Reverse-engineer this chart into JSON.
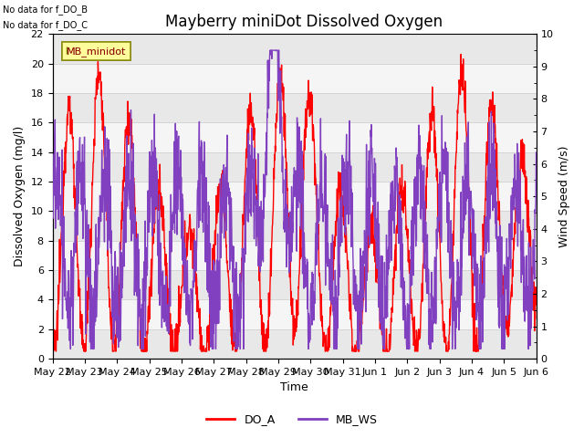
{
  "title": "Mayberry miniDot Dissolved Oxygen",
  "xlabel": "Time",
  "ylabel_left": "Dissolved Oxygen (mg/l)",
  "ylabel_right": "Wind Speed (m/s)",
  "annotation_lines": [
    "No data for f_DO_B",
    "No data for f_DO_C"
  ],
  "legend_label": "MB_minidot",
  "legend_entries": [
    "DO_A",
    "MB_WS"
  ],
  "legend_colors": [
    "#ff0000",
    "#8040c0"
  ],
  "do_color": "#ff0000",
  "ws_color": "#8040c0",
  "ylim_left": [
    0,
    22
  ],
  "ylim_right": [
    0.0,
    10.0
  ],
  "yticks_left": [
    0,
    2,
    4,
    6,
    8,
    10,
    12,
    14,
    16,
    18,
    20,
    22
  ],
  "yticks_right": [
    0.0,
    1.0,
    2.0,
    3.0,
    4.0,
    5.0,
    6.0,
    7.0,
    8.0,
    9.0,
    10.0
  ],
  "xtick_labels": [
    "May 22",
    "May 23",
    "May 24",
    "May 25",
    "May 26",
    "May 27",
    "May 28",
    "May 29",
    "May 30",
    "May 31",
    "Jun 1",
    "Jun 2",
    "Jun 3",
    "Jun 4",
    "Jun 5",
    "Jun 6"
  ],
  "background_color": "#ffffff",
  "plot_bg_light": "#f5f5f5",
  "plot_bg_dark": "#e8e8e8",
  "grid_color": "#d4d4d4",
  "do_linewidth": 1.0,
  "ws_linewidth": 1.0,
  "title_fontsize": 12,
  "label_fontsize": 9,
  "tick_fontsize": 8
}
